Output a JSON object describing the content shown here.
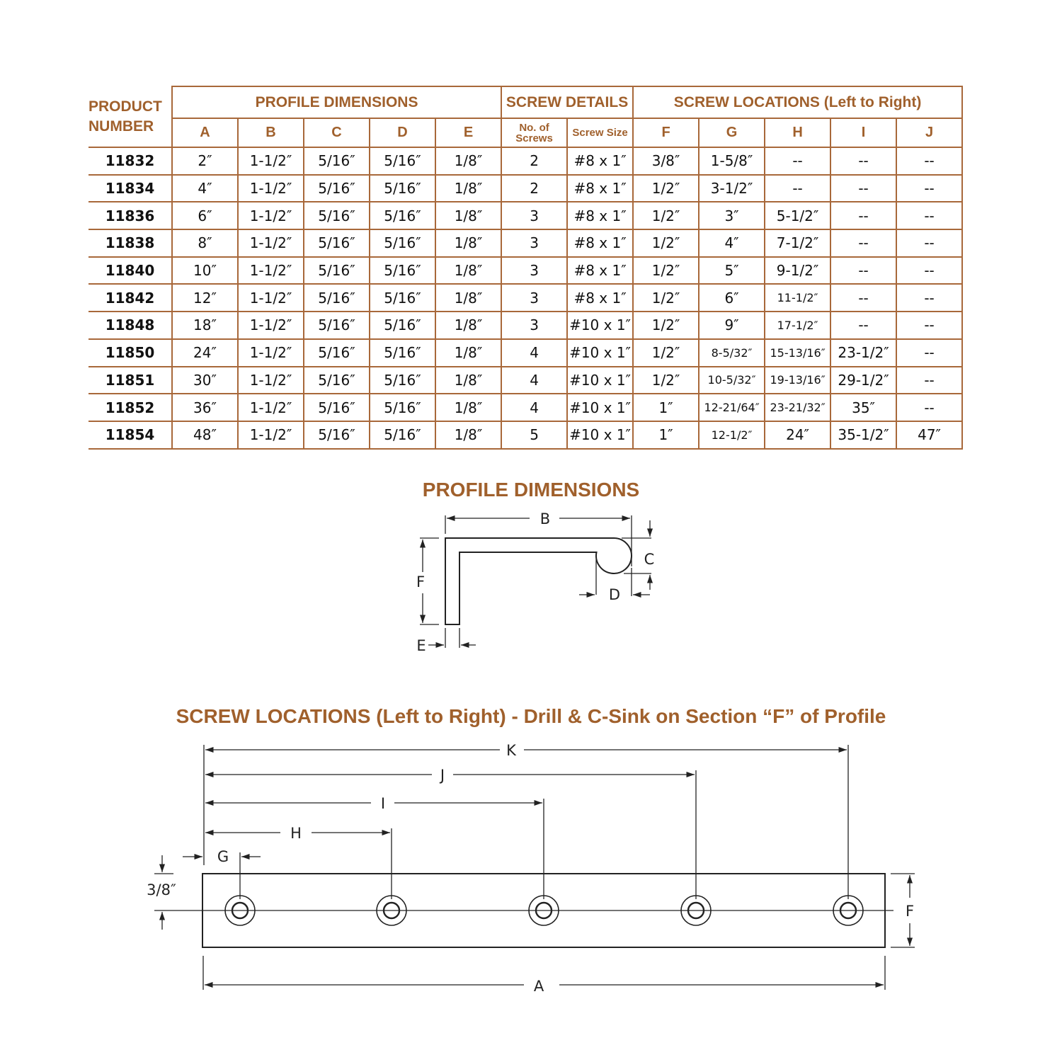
{
  "table": {
    "product_header": "PRODUCT NUMBER",
    "groups": [
      "PROFILE DIMENSIONS",
      "SCREW DETAILS",
      "SCREW LOCATIONS (Left to Right)"
    ],
    "columns": [
      "A",
      "B",
      "C",
      "D",
      "E",
      "No. of Screws",
      "Screw Size",
      "F",
      "G",
      "H",
      "I",
      "J"
    ],
    "rows": [
      [
        "11832",
        "2″",
        "1-1/2″",
        "5/16″",
        "5/16″",
        "1/8″",
        "2",
        "#8 x 1″",
        "3/8″",
        "1-5/8″",
        "--",
        "--",
        "--"
      ],
      [
        "11834",
        "4″",
        "1-1/2″",
        "5/16″",
        "5/16″",
        "1/8″",
        "2",
        "#8 x 1″",
        "1/2″",
        "3-1/2″",
        "--",
        "--",
        "--"
      ],
      [
        "11836",
        "6″",
        "1-1/2″",
        "5/16″",
        "5/16″",
        "1/8″",
        "3",
        "#8 x 1″",
        "1/2″",
        "3″",
        "5-1/2″",
        "--",
        "--"
      ],
      [
        "11838",
        "8″",
        "1-1/2″",
        "5/16″",
        "5/16″",
        "1/8″",
        "3",
        "#8 x 1″",
        "1/2″",
        "4″",
        "7-1/2″",
        "--",
        "--"
      ],
      [
        "11840",
        "10″",
        "1-1/2″",
        "5/16″",
        "5/16″",
        "1/8″",
        "3",
        "#8 x 1″",
        "1/2″",
        "5″",
        "9-1/2″",
        "--",
        "--"
      ],
      [
        "11842",
        "12″",
        "1-1/2″",
        "5/16″",
        "5/16″",
        "1/8″",
        "3",
        "#8 x 1″",
        "1/2″",
        "6″",
        "11-1/2″",
        "--",
        "--"
      ],
      [
        "11848",
        "18″",
        "1-1/2″",
        "5/16″",
        "5/16″",
        "1/8″",
        "3",
        "#10 x 1″",
        "1/2″",
        "9″",
        "17-1/2″",
        "--",
        "--"
      ],
      [
        "11850",
        "24″",
        "1-1/2″",
        "5/16″",
        "5/16″",
        "1/8″",
        "4",
        "#10 x 1″",
        "1/2″",
        "8-5/32″",
        "15-13/16″",
        "23-1/2″",
        "--"
      ],
      [
        "11851",
        "30″",
        "1-1/2″",
        "5/16″",
        "5/16″",
        "1/8″",
        "4",
        "#10 x 1″",
        "1/2″",
        "10-5/32″",
        "19-13/16″",
        "29-1/2″",
        "--"
      ],
      [
        "11852",
        "36″",
        "1-1/2″",
        "5/16″",
        "5/16″",
        "1/8″",
        "4",
        "#10 x 1″",
        "1″",
        "12-21/64″",
        "23-21/32″",
        "35″",
        "--"
      ],
      [
        "11854",
        "48″",
        "1-1/2″",
        "5/16″",
        "5/16″",
        "1/8″",
        "5",
        "#10 x 1″",
        "1″",
        "12-1/2″",
        "24″",
        "35-1/2″",
        "47″"
      ]
    ]
  },
  "profile_diagram": {
    "title": "PROFILE DIMENSIONS",
    "labels": {
      "B": "B",
      "C": "C",
      "D": "D",
      "E": "E",
      "F": "F"
    }
  },
  "screw_diagram": {
    "title": "SCREW LOCATIONS (Left to Right) - Drill & C-Sink on Section “F” of Profile",
    "labels": {
      "K": "K",
      "J": "J",
      "I": "I",
      "H": "H",
      "G": "G",
      "offset": "3/8″",
      "F": "F",
      "A": "A"
    }
  },
  "colors": {
    "accent": "#a0602c",
    "border": "#a8683a"
  }
}
